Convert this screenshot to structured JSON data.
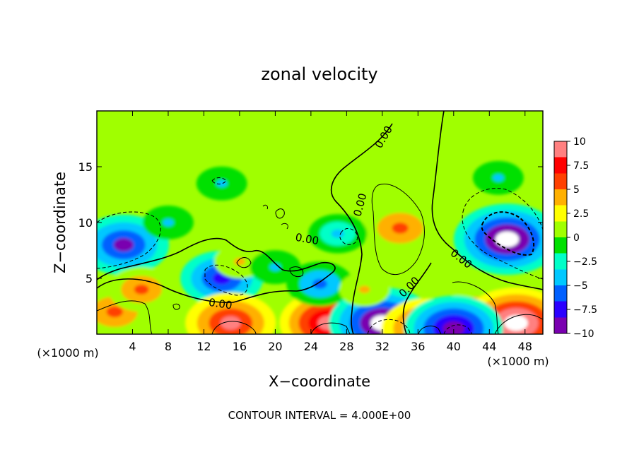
{
  "chart_data": {
    "type": "heatmap",
    "title": "zonal velocity",
    "xlabel": "X−coordinate",
    "ylabel": "Z−coordinate",
    "x_units": "(×1000 m)",
    "xlim": [
      0,
      50
    ],
    "ylim": [
      0,
      20
    ],
    "x_ticks": [
      4,
      8,
      12,
      16,
      20,
      24,
      28,
      32,
      36,
      40,
      44,
      48
    ],
    "x_tick_labels": [
      "4",
      "8",
      "12",
      "16",
      "20",
      "24",
      "28",
      "32",
      "36",
      "40",
      "44",
      "48"
    ],
    "y_ticks": [
      5,
      10,
      15
    ],
    "y_tick_labels": [
      "5",
      "10",
      "15"
    ],
    "colorbar": {
      "range": [
        -10,
        10
      ],
      "ticks": [
        10,
        7.5,
        5,
        2.5,
        0,
        -2.5,
        -5,
        -7.5,
        -10
      ],
      "tick_labels": [
        "10",
        "7.5",
        "5",
        "2.5",
        "0",
        "−2.5",
        "−5",
        "−7.5",
        "−10"
      ],
      "colors": [
        "#7a00b0",
        "#2a00ff",
        "#0060ff",
        "#00c8ff",
        "#00ffc8",
        "#00e000",
        "#a0ff00",
        "#ffff00",
        "#ffb000",
        "#ff4000",
        "#ff0000",
        "#ff8080"
      ]
    },
    "contour_interval_text": "CONTOUR INTERVAL = 4.000E+00",
    "contour_label": "0.00",
    "features": [
      {
        "x": 34,
        "z": 9.5,
        "value": 6
      },
      {
        "x": 46,
        "z": 8.5,
        "value": -10
      },
      {
        "x": 3,
        "z": 8,
        "value": -8
      },
      {
        "x": 14,
        "z": 5,
        "value": -7
      },
      {
        "x": 2,
        "z": 2,
        "value": 6
      },
      {
        "x": 5,
        "z": 4,
        "value": 5
      },
      {
        "x": 43,
        "z": 2,
        "value": 6
      },
      {
        "x": 47,
        "z": 1,
        "value": 10
      },
      {
        "x": 15,
        "z": 1,
        "value": 8
      },
      {
        "x": 26,
        "z": 1,
        "value": 9
      },
      {
        "x": 32,
        "z": 1,
        "value": -10
      },
      {
        "x": 37,
        "z": 0.5,
        "value": 8
      },
      {
        "x": 40,
        "z": 0.5,
        "value": -9
      },
      {
        "x": 27,
        "z": 9,
        "value": -4
      },
      {
        "x": 25,
        "z": 4.5,
        "value": -5
      },
      {
        "x": 21,
        "z": 12,
        "value": 1
      },
      {
        "x": 14,
        "z": 13.5,
        "value": -3
      },
      {
        "x": 30,
        "z": 4,
        "value": 3
      },
      {
        "x": 16,
        "z": 6.5,
        "value": 3
      },
      {
        "x": 20,
        "z": 6,
        "value": -3
      },
      {
        "x": 8,
        "z": 10,
        "value": -3
      },
      {
        "x": 45,
        "z": 14,
        "value": -3
      },
      {
        "x": 10,
        "z": 17,
        "value": 1
      },
      {
        "x": 30,
        "z": 18,
        "value": 0.5
      }
    ]
  }
}
